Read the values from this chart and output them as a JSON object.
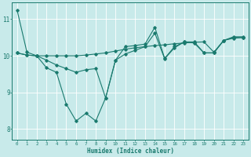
{
  "xlabel": "Humidex (Indice chaleur)",
  "bg_color": "#c8eaea",
  "line_color": "#1a7a6e",
  "grid_color": "#ffffff",
  "xlim": [
    -0.5,
    23.5
  ],
  "ylim": [
    7.7,
    11.45
  ],
  "ytick_vals": [
    8,
    9,
    10,
    11
  ],
  "xtick_vals": [
    0,
    1,
    2,
    3,
    4,
    5,
    6,
    7,
    8,
    9,
    10,
    11,
    12,
    13,
    14,
    15,
    16,
    17,
    18,
    19,
    20,
    21,
    22,
    23
  ],
  "line1_x": [
    0,
    1,
    2,
    3,
    4,
    5,
    6,
    7,
    8,
    9,
    10,
    11,
    12,
    13,
    14,
    15,
    16,
    17,
    18,
    19,
    20,
    21,
    22,
    23
  ],
  "line1_y": [
    11.25,
    10.1,
    10.0,
    9.67,
    9.55,
    8.68,
    8.22,
    8.43,
    8.22,
    8.85,
    9.88,
    10.25,
    10.28,
    10.32,
    10.78,
    9.93,
    10.25,
    10.38,
    10.38,
    10.08,
    10.08,
    10.42,
    10.52,
    10.52
  ],
  "line2_x": [
    0,
    1,
    2,
    3,
    4,
    5,
    6,
    7,
    8,
    9,
    10,
    11,
    12,
    13,
    14,
    15,
    16,
    17,
    18,
    19,
    20,
    21,
    22,
    23
  ],
  "line2_y": [
    10.08,
    10.02,
    10.0,
    10.0,
    10.0,
    10.0,
    10.0,
    10.02,
    10.05,
    10.08,
    10.13,
    10.18,
    10.22,
    10.25,
    10.28,
    10.3,
    10.33,
    10.35,
    10.37,
    10.38,
    10.1,
    10.42,
    10.48,
    10.5
  ],
  "line3_x": [
    0,
    1,
    2,
    3,
    4,
    5,
    6,
    7,
    8,
    9,
    10,
    11,
    12,
    13,
    14,
    15,
    16,
    17,
    18,
    19,
    20,
    21,
    22,
    23
  ],
  "line3_y": [
    10.08,
    10.02,
    10.0,
    9.88,
    9.75,
    9.65,
    9.55,
    9.62,
    9.65,
    8.85,
    9.88,
    10.05,
    10.15,
    10.25,
    10.62,
    9.92,
    10.22,
    10.38,
    10.35,
    10.08,
    10.08,
    10.42,
    10.5,
    10.5
  ]
}
